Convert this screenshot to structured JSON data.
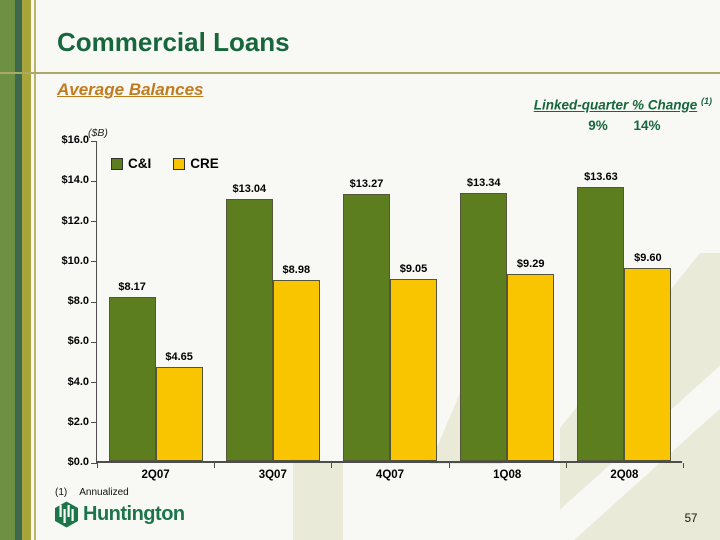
{
  "slide": {
    "title": "Commercial Loans",
    "subtitle": "Average Balances",
    "page_number": "57",
    "footnote": {
      "num": "(1)",
      "text": "Annualized"
    },
    "logo_text": "Huntington"
  },
  "annotation": {
    "label": "Linked-quarter % Change",
    "superscript": "(1)",
    "values": [
      "9%",
      "14%"
    ]
  },
  "chart_data": {
    "type": "bar",
    "title": "Average Balances",
    "unit_label": "($B)",
    "categories": [
      "2Q07",
      "3Q07",
      "4Q07",
      "1Q08",
      "2Q08"
    ],
    "series": [
      {
        "name": "C&I",
        "color": "#5d7e1e",
        "values": [
          8.17,
          13.04,
          13.27,
          13.34,
          13.63
        ]
      },
      {
        "name": "CRE",
        "color": "#f9c501",
        "values": [
          4.65,
          8.98,
          9.05,
          9.29,
          9.6
        ]
      }
    ],
    "value_labels": [
      [
        "$8.17",
        "$13.04",
        "$13.27",
        "$13.34",
        "$13.63"
      ],
      [
        "$4.65",
        "$8.98",
        "$9.05",
        "$9.29",
        "$9.60"
      ]
    ],
    "ylim": [
      0,
      16
    ],
    "ytick_step": 2,
    "ytick_labels": [
      "$0.0",
      "$2.0",
      "$4.0",
      "$6.0",
      "$8.0",
      "$10.0",
      "$12.0",
      "$14.0",
      "$16.0"
    ],
    "legend_position": "top-left-inside",
    "grid": false
  },
  "colors": {
    "title_green": "#17663c",
    "accent_orange": "#c07b1d",
    "bar_green": "#5d7e1e",
    "bar_gold": "#f9c501",
    "watermark_beige": "#e9ebd8",
    "logo_green": "#1c7549"
  }
}
